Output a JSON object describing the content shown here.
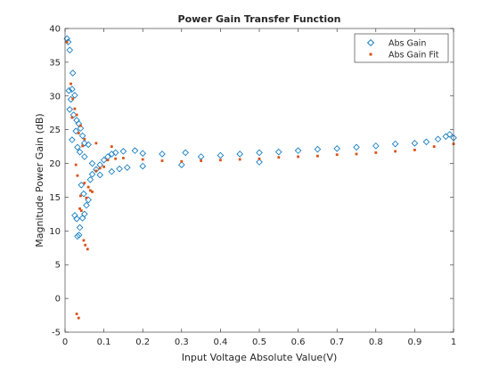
{
  "chart_data": {
    "type": "scatter",
    "title": "Power Gain Transfer Function",
    "xlabel": "Input Voltage Absolute Value(V)",
    "ylabel": "Magnitude Power Gain (dB)",
    "xlim": [
      0,
      1
    ],
    "ylim": [
      -5,
      40
    ],
    "xticks": [
      0,
      0.1,
      0.2,
      0.3,
      0.4,
      0.5,
      0.6,
      0.7,
      0.8,
      0.9,
      1
    ],
    "xtick_labels": [
      "0",
      "0.1",
      "0.2",
      "0.3",
      "0.4",
      "0.5",
      "0.6",
      "0.7",
      "0.8",
      "0.9",
      "1"
    ],
    "yticks": [
      -5,
      0,
      5,
      10,
      15,
      20,
      25,
      30,
      35,
      40
    ],
    "ytick_labels": [
      "-5",
      "0",
      "5",
      "10",
      "15",
      "20",
      "25",
      "30",
      "35",
      "40"
    ],
    "grid": false,
    "legend_position": "top-right",
    "series": [
      {
        "name": "Abs Gain",
        "marker": "diamond-open",
        "color": "#0072BD",
        "points": [
          [
            0.005,
            38.5
          ],
          [
            0.008,
            38.0
          ],
          [
            0.012,
            36.8
          ],
          [
            0.01,
            30.8
          ],
          [
            0.02,
            33.4
          ],
          [
            0.018,
            31.0
          ],
          [
            0.015,
            29.5
          ],
          [
            0.025,
            30.1
          ],
          [
            0.012,
            28.0
          ],
          [
            0.022,
            27.2
          ],
          [
            0.03,
            26.4
          ],
          [
            0.035,
            25.9
          ],
          [
            0.028,
            24.8
          ],
          [
            0.04,
            25.2
          ],
          [
            0.045,
            24.1
          ],
          [
            0.018,
            23.5
          ],
          [
            0.05,
            23.0
          ],
          [
            0.032,
            22.4
          ],
          [
            0.038,
            21.7
          ],
          [
            0.06,
            22.8
          ],
          [
            0.025,
            12.3
          ],
          [
            0.03,
            11.8
          ],
          [
            0.038,
            10.5
          ],
          [
            0.032,
            9.2
          ],
          [
            0.036,
            9.4
          ],
          [
            0.045,
            11.9
          ],
          [
            0.05,
            12.5
          ],
          [
            0.055,
            13.8
          ],
          [
            0.06,
            14.6
          ],
          [
            0.048,
            15.5
          ],
          [
            0.042,
            16.8
          ],
          [
            0.065,
            17.6
          ],
          [
            0.07,
            18.4
          ],
          [
            0.08,
            19.1
          ],
          [
            0.09,
            19.8
          ],
          [
            0.1,
            20.5
          ],
          [
            0.11,
            21.0
          ],
          [
            0.12,
            21.4
          ],
          [
            0.13,
            21.6
          ],
          [
            0.15,
            21.8
          ],
          [
            0.18,
            21.9
          ],
          [
            0.2,
            21.5
          ],
          [
            0.25,
            21.4
          ],
          [
            0.31,
            21.6
          ],
          [
            0.35,
            21.0
          ],
          [
            0.4,
            21.2
          ],
          [
            0.45,
            21.4
          ],
          [
            0.5,
            21.6
          ],
          [
            0.55,
            21.7
          ],
          [
            0.6,
            21.9
          ],
          [
            0.65,
            22.1
          ],
          [
            0.7,
            22.2
          ],
          [
            0.75,
            22.4
          ],
          [
            0.8,
            22.6
          ],
          [
            0.85,
            22.9
          ],
          [
            0.9,
            23.0
          ],
          [
            0.93,
            23.2
          ],
          [
            0.96,
            23.6
          ],
          [
            0.98,
            24.0
          ],
          [
            1.0,
            23.8
          ],
          [
            0.99,
            24.3
          ],
          [
            0.05,
            21.0
          ],
          [
            0.07,
            20.0
          ],
          [
            0.09,
            18.3
          ],
          [
            0.12,
            18.8
          ],
          [
            0.14,
            19.2
          ],
          [
            0.16,
            19.4
          ],
          [
            0.2,
            19.6
          ],
          [
            0.3,
            19.8
          ],
          [
            0.5,
            20.2
          ]
        ]
      },
      {
        "name": "Abs Gain Fit",
        "marker": "square-filled",
        "color": "#D95319",
        "points": [
          [
            0.005,
            38.0
          ],
          [
            0.015,
            31.8
          ],
          [
            0.02,
            29.6
          ],
          [
            0.025,
            28.1
          ],
          [
            0.03,
            27.2
          ],
          [
            0.018,
            26.8
          ],
          [
            0.04,
            25.6
          ],
          [
            0.035,
            24.5
          ],
          [
            0.05,
            23.6
          ],
          [
            0.045,
            22.6
          ],
          [
            0.028,
            19.8
          ],
          [
            0.032,
            18.2
          ],
          [
            0.05,
            17.1
          ],
          [
            0.06,
            16.5
          ],
          [
            0.065,
            16.0
          ],
          [
            0.07,
            15.8
          ],
          [
            0.055,
            14.9
          ],
          [
            0.04,
            15.2
          ],
          [
            0.038,
            13.3
          ],
          [
            0.042,
            13.0
          ],
          [
            0.052,
            7.9
          ],
          [
            0.058,
            7.3
          ],
          [
            0.048,
            8.6
          ],
          [
            0.03,
            -2.3
          ],
          [
            0.035,
            -2.9
          ],
          [
            0.08,
            18.9
          ],
          [
            0.09,
            19.3
          ],
          [
            0.1,
            19.5
          ],
          [
            0.11,
            20.5
          ],
          [
            0.13,
            20.7
          ],
          [
            0.15,
            20.8
          ],
          [
            0.2,
            20.6
          ],
          [
            0.25,
            20.4
          ],
          [
            0.3,
            20.3
          ],
          [
            0.35,
            20.4
          ],
          [
            0.4,
            20.5
          ],
          [
            0.45,
            20.6
          ],
          [
            0.5,
            20.7
          ],
          [
            0.55,
            20.9
          ],
          [
            0.6,
            21.0
          ],
          [
            0.65,
            21.1
          ],
          [
            0.7,
            21.3
          ],
          [
            0.75,
            21.4
          ],
          [
            0.8,
            21.6
          ],
          [
            0.85,
            21.8
          ],
          [
            0.9,
            22.0
          ],
          [
            0.95,
            22.5
          ],
          [
            1.0,
            22.9
          ],
          [
            0.12,
            22.5
          ],
          [
            0.08,
            23.0
          ]
        ]
      }
    ]
  }
}
